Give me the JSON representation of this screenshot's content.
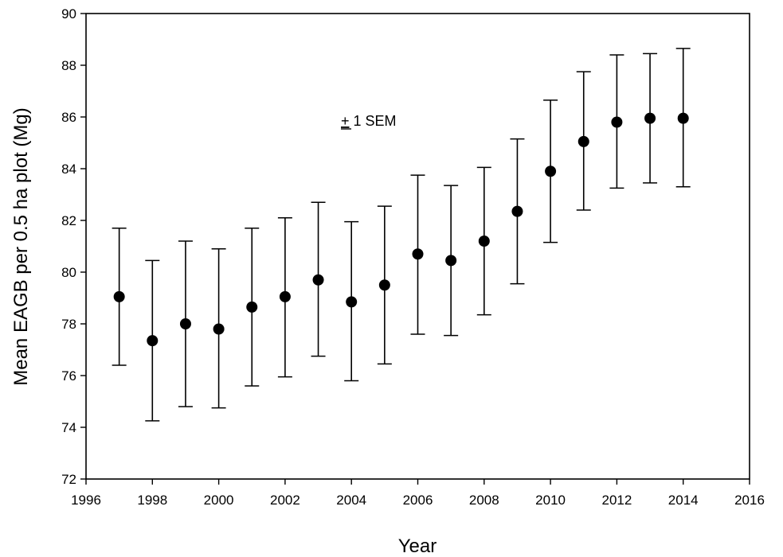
{
  "chart_data": {
    "type": "scatter",
    "xlabel": "Year",
    "ylabel": "Mean EAGB per 0.5 ha plot (Mg)",
    "xlim": [
      1996,
      2016
    ],
    "ylim": [
      72,
      90
    ],
    "x_ticks": [
      "1996",
      "1998",
      "2000",
      "2002",
      "2004",
      "2006",
      "2008",
      "2010",
      "2012",
      "2014",
      "2016"
    ],
    "y_ticks": [
      "72",
      "74",
      "76",
      "78",
      "80",
      "82",
      "84",
      "86",
      "88",
      "90"
    ],
    "annotation": {
      "symbol": "+",
      "text": " 1 SEM"
    },
    "grid": false,
    "series": [
      {
        "x": [
          1997,
          1998,
          1999,
          2000,
          2001,
          2002,
          2003,
          2004,
          2005,
          2006,
          2007,
          2008,
          2009,
          2010,
          2011,
          2012,
          2013,
          2014
        ],
        "y": [
          79.05,
          77.35,
          78.0,
          77.8,
          78.65,
          79.05,
          79.7,
          78.85,
          79.5,
          80.7,
          80.45,
          81.2,
          82.35,
          83.9,
          85.05,
          85.8,
          85.95,
          85.95
        ],
        "y_lower": [
          76.4,
          74.25,
          74.8,
          74.75,
          75.6,
          75.95,
          76.75,
          75.8,
          76.45,
          77.6,
          77.55,
          78.35,
          79.55,
          81.15,
          82.4,
          83.25,
          83.45,
          83.3
        ],
        "y_upper": [
          81.7,
          80.45,
          81.2,
          80.9,
          81.7,
          82.1,
          82.7,
          81.95,
          82.55,
          83.75,
          83.35,
          84.05,
          85.15,
          86.65,
          87.75,
          88.4,
          88.45,
          88.65
        ]
      }
    ],
    "colors": {
      "marker": "#000000",
      "axis": "#000000"
    }
  }
}
